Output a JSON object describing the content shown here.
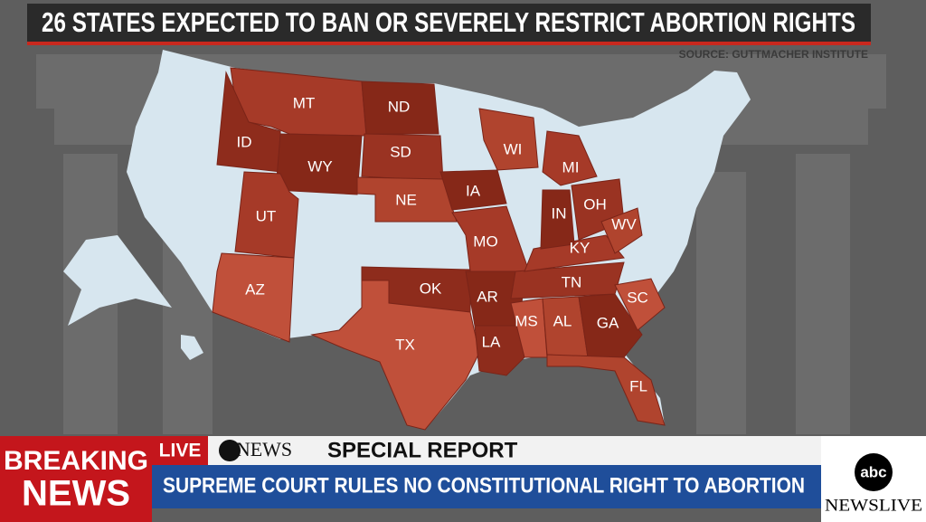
{
  "header": {
    "title": "26 STATES EXPECTED TO BAN OR SEVERELY RESTRICT ABORTION RIGHTS",
    "source": "SOURCE: GUTTMACHER INSTITUTE"
  },
  "map": {
    "states": [
      "MT",
      "ND",
      "ID",
      "WY",
      "SD",
      "WI",
      "MI",
      "NE",
      "IA",
      "UT",
      "IN",
      "OH",
      "WV",
      "MO",
      "KY",
      "AZ",
      "OK",
      "AR",
      "TN",
      "SC",
      "MS",
      "AL",
      "GA",
      "TX",
      "LA",
      "FL"
    ]
  },
  "banner": {
    "breaking": "BREAKING",
    "news": "NEWS",
    "live": "LIVE",
    "network": "NEWS",
    "show": "SPECIAL REPORT",
    "headline": "SUPREME COURT RULES NO CONSTITUTIONAL RIGHT TO ABORTION",
    "logo": "abc",
    "logo_network": "NEWSLIVE"
  }
}
